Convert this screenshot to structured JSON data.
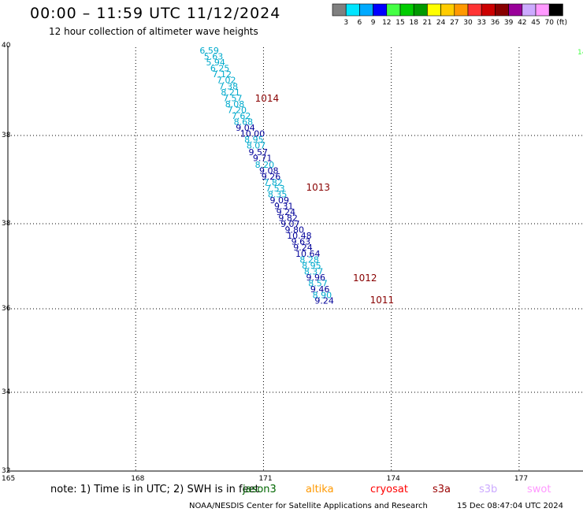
{
  "header": {
    "title": "00:00 – 11:59 UTC 11/12/2024",
    "subtitle": "12 hour collection of altimeter wave heights"
  },
  "legend": {
    "colors": [
      "#808080",
      "#00e5ff",
      "#00aaff",
      "#0000ff",
      "#44ff44",
      "#00cc00",
      "#009900",
      "#ffff00",
      "#ffcc00",
      "#ff9900",
      "#ff3333",
      "#cc0000",
      "#880000",
      "#990099",
      "#ccaaff",
      "#ff99ff",
      "#000000"
    ],
    "labels": [
      "3",
      "6",
      "9",
      "12",
      "15",
      "18",
      "21",
      "24",
      "27",
      "30",
      "33",
      "36",
      "39",
      "42",
      "45",
      "70"
    ],
    "unit": "(ft)"
  },
  "footer": {
    "note": "note:  1) Time is in UTC; 2) SWH is in feet",
    "satellites": [
      {
        "name": "jason3",
        "color": "#006600"
      },
      {
        "name": "altika",
        "color": "#ff9900"
      },
      {
        "name": "cryosat",
        "color": "#ff0000"
      },
      {
        "name": "s3a",
        "color": "#990000"
      },
      {
        "name": "s3b",
        "color": "#ccaaff"
      },
      {
        "name": "swot",
        "color": "#ff99ff"
      }
    ],
    "credit": "NOAA/NESDIS Center for Satellite Applications and Research",
    "timestamp": "15 Dec 08:47:04 UTC 2024"
  },
  "chart_data": {
    "type": "scatter",
    "xlim": [
      165,
      178.5
    ],
    "ylim": [
      30,
      40
    ],
    "x_ticks": [
      "165",
      "168",
      "171",
      "174",
      "177"
    ],
    "y_ticks": [
      "40",
      "38",
      "38",
      "36",
      "34",
      "32",
      "30"
    ],
    "grid": true,
    "points": [
      {
        "lon": 169.5,
        "lat": 39.85,
        "label": "6.59",
        "color": "#00aacc"
      },
      {
        "lon": 169.6,
        "lat": 39.71,
        "label": "5.63",
        "color": "#00aacc"
      },
      {
        "lon": 169.65,
        "lat": 39.57,
        "label": "5.94",
        "color": "#00aacc"
      },
      {
        "lon": 169.75,
        "lat": 39.43,
        "label": "6.25",
        "color": "#00aacc"
      },
      {
        "lon": 169.8,
        "lat": 39.29,
        "label": "7.12",
        "color": "#00aacc"
      },
      {
        "lon": 169.9,
        "lat": 39.15,
        "label": "7.02",
        "color": "#00aacc"
      },
      {
        "lon": 169.95,
        "lat": 39.01,
        "label": "7.38",
        "color": "#00aacc"
      },
      {
        "lon": 170.0,
        "lat": 38.87,
        "label": "8.21",
        "color": "#00aacc"
      },
      {
        "lon": 170.05,
        "lat": 38.73,
        "label": "7.57",
        "color": "#00aacc"
      },
      {
        "lon": 170.1,
        "lat": 38.59,
        "label": "8.08",
        "color": "#00aacc"
      },
      {
        "lon": 170.15,
        "lat": 38.45,
        "label": "7.20",
        "color": "#00aacc"
      },
      {
        "lon": 170.25,
        "lat": 38.31,
        "label": "7.62",
        "color": "#00aacc"
      },
      {
        "lon": 170.3,
        "lat": 38.17,
        "label": "8.68",
        "color": "#00aacc"
      },
      {
        "lon": 170.35,
        "lat": 38.03,
        "label": "9.04",
        "color": "#000099"
      },
      {
        "lon": 170.45,
        "lat": 37.89,
        "label": "10.00",
        "color": "#000099"
      },
      {
        "lon": 170.55,
        "lat": 37.75,
        "label": "8.95",
        "color": "#00aacc"
      },
      {
        "lon": 170.6,
        "lat": 37.61,
        "label": "8.07",
        "color": "#00aacc"
      },
      {
        "lon": 170.65,
        "lat": 37.45,
        "label": "9.57",
        "color": "#000099"
      },
      {
        "lon": 170.75,
        "lat": 37.31,
        "label": "9.71",
        "color": "#000099"
      },
      {
        "lon": 170.8,
        "lat": 37.16,
        "label": "8.20",
        "color": "#00aacc"
      },
      {
        "lon": 170.9,
        "lat": 37.02,
        "label": "9.08",
        "color": "#000099"
      },
      {
        "lon": 170.95,
        "lat": 36.88,
        "label": "9.26",
        "color": "#000099"
      },
      {
        "lon": 171.0,
        "lat": 36.74,
        "label": "7.82",
        "color": "#00aacc"
      },
      {
        "lon": 171.05,
        "lat": 36.6,
        "label": "7.53",
        "color": "#00aacc"
      },
      {
        "lon": 171.1,
        "lat": 36.46,
        "label": "8.35",
        "color": "#00aacc"
      },
      {
        "lon": 171.15,
        "lat": 36.32,
        "label": "9.09",
        "color": "#000099"
      },
      {
        "lon": 171.25,
        "lat": 36.18,
        "label": "9.31",
        "color": "#000099"
      },
      {
        "lon": 171.3,
        "lat": 36.04,
        "label": "9.24",
        "color": "#000099"
      },
      {
        "lon": 171.35,
        "lat": 35.9,
        "label": "9.82",
        "color": "#000099"
      },
      {
        "lon": 171.4,
        "lat": 35.76,
        "label": "9.07",
        "color": "#000099"
      },
      {
        "lon": 171.5,
        "lat": 35.62,
        "label": "9.80",
        "color": "#000099"
      },
      {
        "lon": 171.55,
        "lat": 35.48,
        "label": "10.48",
        "color": "#000099"
      },
      {
        "lon": 171.65,
        "lat": 35.34,
        "label": "9.63",
        "color": "#000099"
      },
      {
        "lon": 171.7,
        "lat": 35.2,
        "label": "9.24",
        "color": "#000099"
      },
      {
        "lon": 171.75,
        "lat": 35.06,
        "label": "10.64",
        "color": "#000099"
      },
      {
        "lon": 171.85,
        "lat": 34.92,
        "label": "8.28",
        "color": "#00aacc"
      },
      {
        "lon": 171.9,
        "lat": 34.78,
        "label": "8.95",
        "color": "#00aacc"
      },
      {
        "lon": 171.95,
        "lat": 34.64,
        "label": "8.37",
        "color": "#00aacc"
      },
      {
        "lon": 172.0,
        "lat": 34.5,
        "label": "9.96",
        "color": "#000099"
      },
      {
        "lon": 172.05,
        "lat": 34.36,
        "label": "8.57",
        "color": "#00aacc"
      },
      {
        "lon": 172.1,
        "lat": 34.22,
        "label": "9.46",
        "color": "#000099"
      },
      {
        "lon": 172.15,
        "lat": 34.08,
        "label": "8.90",
        "color": "#00aacc"
      },
      {
        "lon": 172.2,
        "lat": 33.95,
        "label": "9.24",
        "color": "#000099"
      }
    ],
    "annotations": [
      {
        "lon": 170.8,
        "lat": 38.72,
        "label": "1014",
        "color": "#880000"
      },
      {
        "lon": 172.0,
        "lat": 36.62,
        "label": "1013",
        "color": "#880000"
      },
      {
        "lon": 173.1,
        "lat": 34.48,
        "label": "1012",
        "color": "#880000"
      },
      {
        "lon": 173.5,
        "lat": 33.96,
        "label": "1011",
        "color": "#880000"
      }
    ],
    "edge_label": {
      "label": "14",
      "color": "#44ff44"
    }
  }
}
